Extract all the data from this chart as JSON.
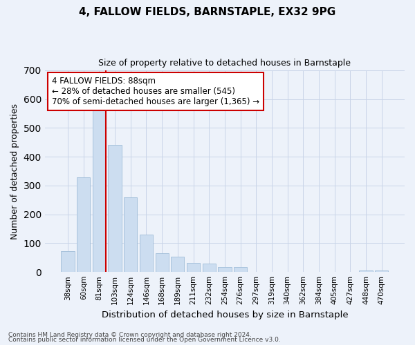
{
  "title": "4, FALLOW FIELDS, BARNSTAPLE, EX32 9PG",
  "subtitle": "Size of property relative to detached houses in Barnstaple",
  "xlabel": "Distribution of detached houses by size in Barnstaple",
  "ylabel": "Number of detached properties",
  "categories": [
    "38sqm",
    "60sqm",
    "81sqm",
    "103sqm",
    "124sqm",
    "146sqm",
    "168sqm",
    "189sqm",
    "211sqm",
    "232sqm",
    "254sqm",
    "276sqm",
    "297sqm",
    "319sqm",
    "340sqm",
    "362sqm",
    "384sqm",
    "405sqm",
    "427sqm",
    "448sqm",
    "470sqm"
  ],
  "values": [
    72,
    328,
    562,
    440,
    258,
    130,
    65,
    53,
    32,
    30,
    18,
    17,
    0,
    0,
    0,
    0,
    0,
    0,
    0,
    5,
    5
  ],
  "bar_color": "#ccddf0",
  "bar_edge_color": "#a0bcd8",
  "grid_color": "#c8d4e8",
  "background_color": "#edf2fa",
  "red_line_index": 2,
  "annotation_line1": "4 FALLOW FIELDS: 88sqm",
  "annotation_line2": "← 28% of detached houses are smaller (545)",
  "annotation_line3": "70% of semi-detached houses are larger (1,365) →",
  "footnote1": "Contains HM Land Registry data © Crown copyright and database right 2024.",
  "footnote2": "Contains public sector information licensed under the Open Government Licence v3.0.",
  "ylim_max": 700,
  "yticks": [
    0,
    100,
    200,
    300,
    400,
    500,
    600,
    700
  ]
}
